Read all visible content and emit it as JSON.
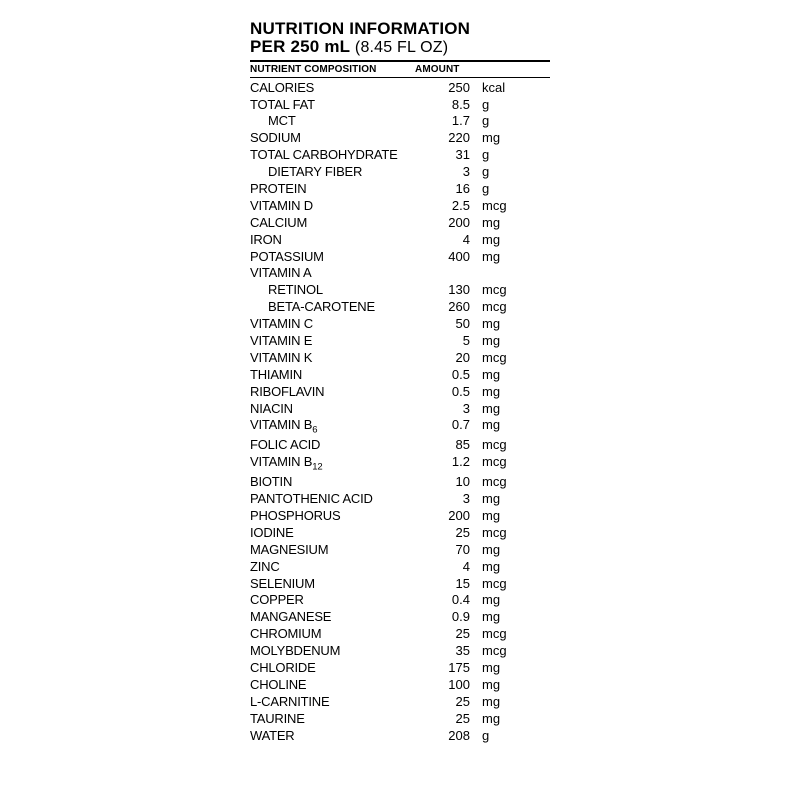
{
  "header": {
    "line1": "NUTRITION INFORMATION",
    "line2_bold": "PER 250 mL",
    "line2_rest": " (8.45 FL OZ)",
    "col1": "NUTRIENT COMPOSITION",
    "col2": "AMOUNT"
  },
  "rows": [
    {
      "name": "CALORIES",
      "amt": "250",
      "unit": "kcal",
      "indent": 0
    },
    {
      "name": "TOTAL FAT",
      "amt": "8.5",
      "unit": "g",
      "indent": 0
    },
    {
      "name": "MCT",
      "amt": "1.7",
      "unit": "g",
      "indent": 1
    },
    {
      "name": "SODIUM",
      "amt": "220",
      "unit": "mg",
      "indent": 0
    },
    {
      "name": "TOTAL CARBOHYDRATE",
      "amt": "31",
      "unit": "g",
      "indent": 0
    },
    {
      "name": "DIETARY FIBER",
      "amt": "3",
      "unit": "g",
      "indent": 1
    },
    {
      "name": "PROTEIN",
      "amt": "16",
      "unit": "g",
      "indent": 0
    },
    {
      "name": "VITAMIN D",
      "amt": "2.5",
      "unit": "mcg",
      "indent": 0
    },
    {
      "name": "CALCIUM",
      "amt": "200",
      "unit": "mg",
      "indent": 0
    },
    {
      "name": "IRON",
      "amt": "4",
      "unit": "mg",
      "indent": 0
    },
    {
      "name": "POTASSIUM",
      "amt": "400",
      "unit": "mg",
      "indent": 0
    },
    {
      "name": "VITAMIN A",
      "amt": "",
      "unit": "",
      "indent": 0
    },
    {
      "name": "RETINOL",
      "amt": "130",
      "unit": "mcg",
      "indent": 1
    },
    {
      "name": "BETA-CAROTENE",
      "amt": "260",
      "unit": "mcg",
      "indent": 1
    },
    {
      "name": "VITAMIN C",
      "amt": "50",
      "unit": "mg",
      "indent": 0
    },
    {
      "name": "VITAMIN E",
      "amt": "5",
      "unit": "mg",
      "indent": 0
    },
    {
      "name": "VITAMIN K",
      "amt": "20",
      "unit": "mcg",
      "indent": 0
    },
    {
      "name": "THIAMIN",
      "amt": "0.5",
      "unit": "mg",
      "indent": 0
    },
    {
      "name": "RIBOFLAVIN",
      "amt": "0.5",
      "unit": "mg",
      "indent": 0
    },
    {
      "name": "NIACIN",
      "amt": "3",
      "unit": "mg",
      "indent": 0
    },
    {
      "name": "VITAMIN B|6",
      "amt": "0.7",
      "unit": "mg",
      "indent": 0
    },
    {
      "name": "FOLIC ACID",
      "amt": "85",
      "unit": "mcg",
      "indent": 0
    },
    {
      "name": "VITAMIN B|12",
      "amt": "1.2",
      "unit": "mcg",
      "indent": 0
    },
    {
      "name": "BIOTIN",
      "amt": "10",
      "unit": "mcg",
      "indent": 0
    },
    {
      "name": "PANTOTHENIC ACID",
      "amt": "3",
      "unit": "mg",
      "indent": 0
    },
    {
      "name": "PHOSPHORUS",
      "amt": "200",
      "unit": "mg",
      "indent": 0
    },
    {
      "name": "IODINE",
      "amt": "25",
      "unit": "mcg",
      "indent": 0
    },
    {
      "name": "MAGNESIUM",
      "amt": "70",
      "unit": "mg",
      "indent": 0
    },
    {
      "name": "ZINC",
      "amt": "4",
      "unit": "mg",
      "indent": 0
    },
    {
      "name": "SELENIUM",
      "amt": "15",
      "unit": "mcg",
      "indent": 0
    },
    {
      "name": "COPPER",
      "amt": "0.4",
      "unit": "mg",
      "indent": 0
    },
    {
      "name": "MANGANESE",
      "amt": "0.9",
      "unit": "mg",
      "indent": 0
    },
    {
      "name": "CHROMIUM",
      "amt": "25",
      "unit": "mcg",
      "indent": 0
    },
    {
      "name": "MOLYBDENUM",
      "amt": "35",
      "unit": "mcg",
      "indent": 0
    },
    {
      "name": "CHLORIDE",
      "amt": "175",
      "unit": "mg",
      "indent": 0
    },
    {
      "name": "CHOLINE",
      "amt": "100",
      "unit": "mg",
      "indent": 0
    },
    {
      "name": "L-CARNITINE",
      "amt": "25",
      "unit": "mg",
      "indent": 0
    },
    {
      "name": "TAURINE",
      "amt": "25",
      "unit": "mg",
      "indent": 0
    },
    {
      "name": "WATER",
      "amt": "208",
      "unit": "g",
      "indent": 0
    }
  ]
}
